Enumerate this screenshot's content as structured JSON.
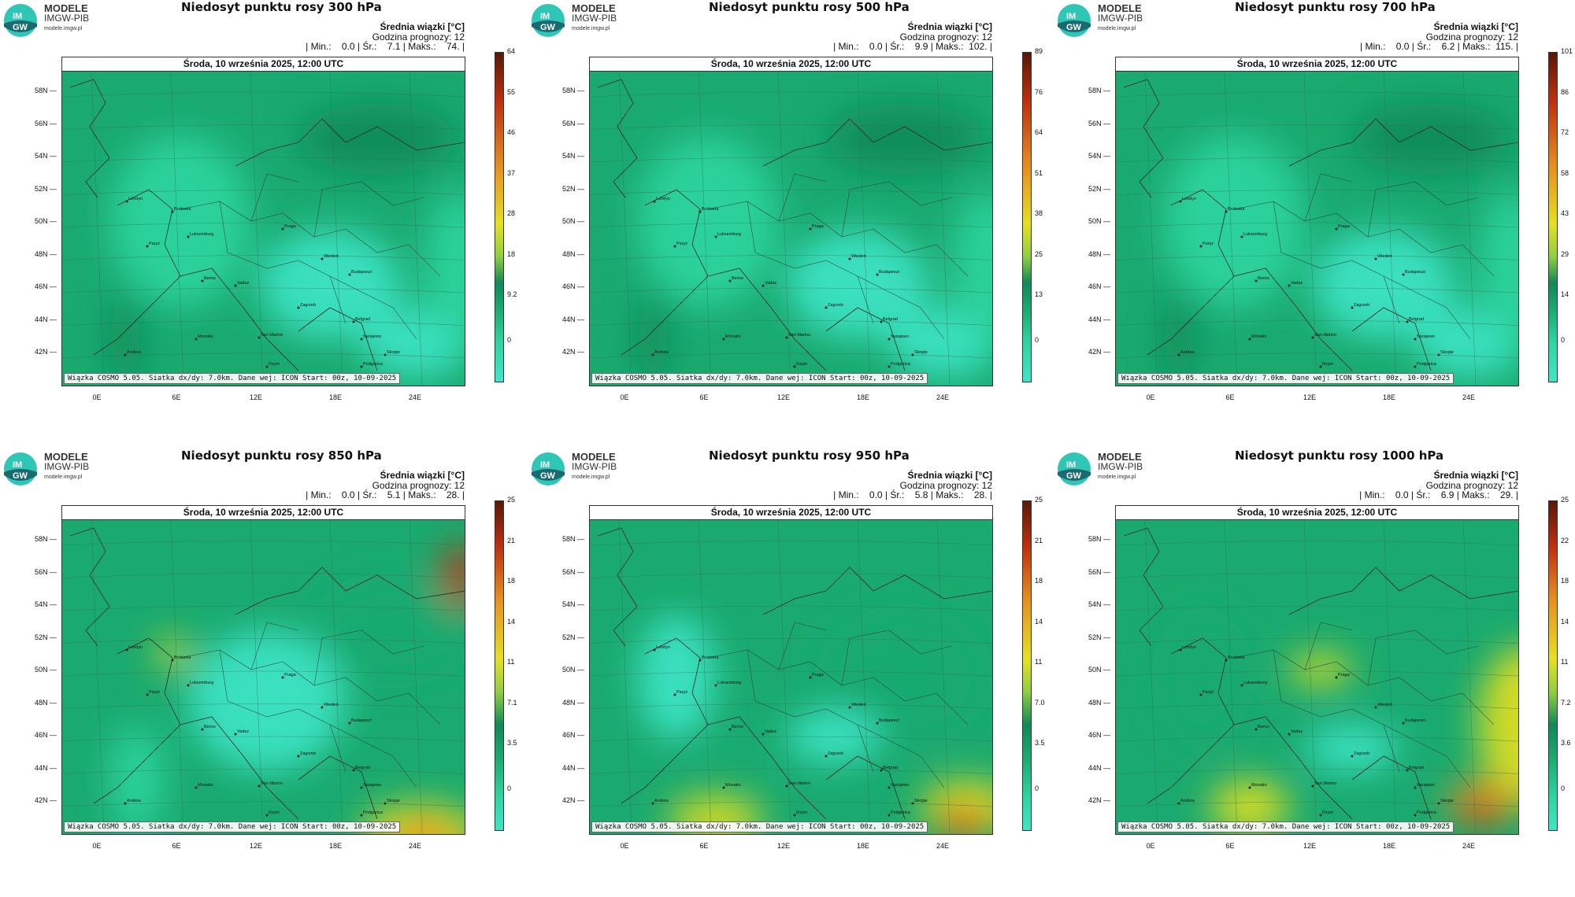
{
  "brand": {
    "line1": "MODELE",
    "line2": "IMGW-PIB",
    "line3": "modele.imgw.pl",
    "logo_text_top": "IM",
    "logo_text_bottom": "GW"
  },
  "common": {
    "legend_title": "Średnia wiązki [°C]",
    "forecast_hour": "Godzina prognozy: 12",
    "date_header": "Środa, 10 września 2025, 12:00 UTC",
    "footer": "Wiązka COSMO 5.05. Siatka dx/dy: 7.0km. Dane wej: ICON Start: 00z, 10-09-2025",
    "lat_labels": [
      "58N",
      "56N",
      "54N",
      "52N",
      "50N",
      "48N",
      "46N",
      "44N",
      "42N"
    ],
    "lon_labels": [
      "0E",
      "6E",
      "12E",
      "18E",
      "24E"
    ],
    "cities": [
      "Londyn",
      "Bruksela",
      "Luksemburg",
      "Paryż",
      "Praga",
      "Wiedeń",
      "Budapeszt",
      "Berno",
      "Vaduz",
      "Zagrzeb",
      "Belgrad",
      "San Marino",
      "Sarajewo",
      "Monako",
      "Andora",
      "Podgorica",
      "Skopje",
      "Rzym"
    ]
  },
  "colors": {
    "cyan": "#3ee6c8",
    "light": "#2ed5a0",
    "green": "#1aaa70",
    "dark": "#0e8a58",
    "yellow": "#e6e020",
    "orange": "#e89020",
    "red": "#c03010"
  },
  "panels": [
    {
      "title": "Niedosyt punktu rosy 300 hPa",
      "stats": "| Min.:    0.0 | Śr.:    7.1 | Maks.:    74. |",
      "ticks": [
        "64",
        "55",
        "46",
        "37",
        "28",
        "18",
        "9.2",
        "0"
      ],
      "palette": "cool"
    },
    {
      "title": "Niedosyt punktu rosy 500 hPa",
      "stats": "| Min.:    0.0 | Śr.:    9.9 | Maks.:  102. |",
      "ticks": [
        "89",
        "76",
        "64",
        "51",
        "38",
        "25",
        "13",
        "0"
      ],
      "palette": "cool"
    },
    {
      "title": "Niedosyt punktu rosy 700 hPa",
      "stats": "| Min.:    0.0 | Śr.:    6.2 | Maks.:  115. |",
      "ticks": [
        "101",
        "86",
        "72",
        "58",
        "43",
        "29",
        "14",
        "0"
      ],
      "palette": "cool"
    },
    {
      "title": "Niedosyt punktu rosy 850 hPa",
      "stats": "| Min.:    0.0 | Śr.:    5.1 | Maks.:    28. |",
      "ticks": [
        "25",
        "21",
        "18",
        "14",
        "11",
        "7.1",
        "3.5",
        "0"
      ],
      "palette": "warm1"
    },
    {
      "title": "Niedosyt punktu rosy 950 hPa",
      "stats": "| Min.:    0.0 | Śr.:    5.8 | Maks.:    28. |",
      "ticks": [
        "25",
        "21",
        "18",
        "14",
        "11",
        "7.0",
        "3.5",
        "0"
      ],
      "palette": "warm2"
    },
    {
      "title": "Niedosyt punktu rosy 1000 hPa",
      "stats": "| Min.:    0.0 | Śr.:    6.9 | Maks.:    29. |",
      "ticks": [
        "25",
        "22",
        "18",
        "14",
        "11",
        "7.2",
        "3.6",
        "0"
      ],
      "palette": "warm3"
    }
  ]
}
